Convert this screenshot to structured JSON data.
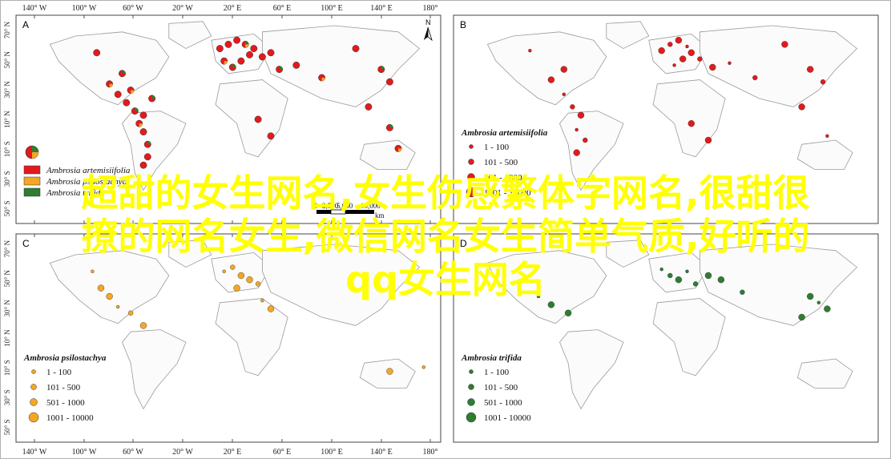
{
  "figure": {
    "lon_labels": [
      "140° W",
      "100° W",
      "60° W",
      "20° W",
      "20° E",
      "60° E",
      "100° E",
      "140° E",
      "180°"
    ],
    "lat_labels_top": [
      "70° N",
      "50° N",
      "30° N",
      "10° N",
      "10° S",
      "30° S",
      "50° S"
    ],
    "lat_labels_bottom": [
      "70° N",
      "50° N",
      "30° N",
      "10° N",
      "10° S",
      "30° S",
      "50° S"
    ],
    "north_arrow_label": "N",
    "scale_bar": {
      "labels": [
        "0",
        "2,500",
        "5,000",
        "10,000"
      ],
      "unit": "km"
    }
  },
  "panels": [
    {
      "letter": "A",
      "legend": {
        "entries": [
          {
            "name": "Ambrosia artemisiifolia",
            "color": "#e31a1c"
          },
          {
            "name": "Ambrosia psilostachya",
            "color": "#f5a623"
          },
          {
            "name": "Ambrosia trifida",
            "color": "#2e7d32"
          }
        ]
      }
    },
    {
      "letter": "B",
      "legend": {
        "title": "Ambrosia artemisiifolia",
        "color": "#e31a1c",
        "classes": [
          "1 - 100",
          "101 - 500",
          "501 - 1000",
          "1001 - 10000"
        ]
      }
    },
    {
      "letter": "C",
      "legend": {
        "title": "Ambrosia psilostachya",
        "color": "#f5a623",
        "classes": [
          "1 - 100",
          "101 - 500",
          "501 - 1000",
          "1001 - 10000"
        ]
      }
    },
    {
      "letter": "D",
      "legend": {
        "title": "Ambrosia trifida",
        "color": "#2e7d32",
        "classes": [
          "1 - 100",
          "101 - 500",
          "501 - 1000",
          "1001 - 10000"
        ]
      }
    }
  ],
  "banner": {
    "line1": "超甜的女生网名,女生伤感繁体字网名,很甜很",
    "line2": "撩的网名女生,微信网名女生简单气质,好听的",
    "line3": "qq女生网名"
  }
}
